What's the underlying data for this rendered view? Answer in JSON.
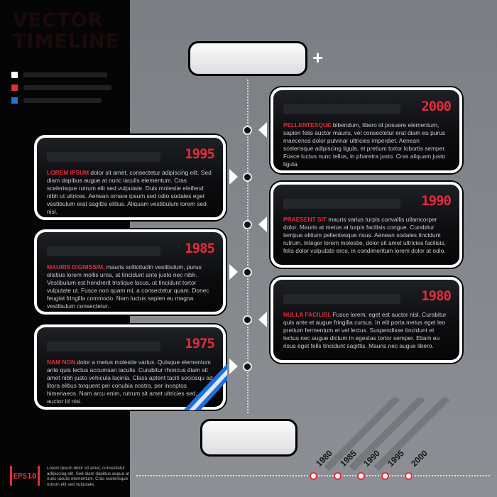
{
  "title": {
    "lines": [
      "VECTOR",
      "TIMELINE"
    ]
  },
  "legend": [
    {
      "color": "#ffffff"
    },
    {
      "color": "#e52b3c"
    },
    {
      "color": "#1f6fe0"
    }
  ],
  "header_pill": {
    "text": ""
  },
  "footer_pill": {
    "text": ""
  },
  "events": [
    {
      "year": "2000",
      "lead": "PELLENTESQUE",
      "text": "bibendum, libero id posuere elementum, sapien felis auctor mauris, vel consectetur erat diam eu purus maecenas dolor pulvinar ultricies imperdiet. Aenean scelerisque adipiscing ligula, et pretium tortor lobortis semper. Fusce luctus nunc tellus, in pharetra justo. Cras aliquam justo ligula."
    },
    {
      "year": "1995",
      "lead": "LOREM IPSUM",
      "text": "dolor sit amet, consectetur adipiscing elit. Sed diam dapibus augue at nunc iaculis elementum. Cras scelerisque rutrum elit sed vulputate. Duis molestie eleifend nibh ut ultrices. Aenean ornare ipsum sed odio sodales eget vestibulum erat sagittis elitius. Aliquam vestibulum lorem sed nisl."
    },
    {
      "year": "1990",
      "lead": "PRAESENT SIT",
      "text": "mauris varius turpis convallis ullamcorper dolor. Mauris at metus at turpis facilisis congue. Curabitur tempus elitium pellentesque risus. Aenean sodales tincidunt rutrum. Integer lorem molestie, dolor sit amet ultricies facilisis, felis dolor vulputate eros, in condimentum lorem dolor at odio."
    },
    {
      "year": "1985",
      "lead": "MAURIS DIGNISSIM,",
      "text": "mauris sollicitudin vestibulum, purus elistius lorem mollis urna, at tincidunt ante justo nec nibh. Vestibulum est hendrerit tristique lacus, ut tincidunt tortor vulputate ut. Fusce non quam mi, a consectetur quam. Donec feugiat fringilla commodo. Nam luctus sapien eu magna vestibulum consectetur."
    },
    {
      "year": "1980",
      "lead": "NULLA FACILISI.",
      "text": "Fusce lorem, eget est auctor nisl. Curabitur quis ante et augue fringilla cursus. In elit porta metus eget leo pretium fermentum et vel lectus. Suspendisse tincidunt et lectus nec augue dictum in egestas tortor semper. Etiam eu risus eget felis tincidunt sagittis. Mauris nec augue libero."
    },
    {
      "year": "1975",
      "lead": "NAM NON",
      "text": "dolor a metus molestie varius. Quisque elementum ante quis lectus accumsan iaculis. Curabitur rhoncus diam sit amet nibh justo vehicula lacinia. Class aptent taciti sociosqu ad litora elitius torquent per conubia nostra, per inceptos himenaeos. Nam arcu enim, rutrum sit amet ultricies sed, auctor id nisi."
    }
  ],
  "badge": {
    "text": "EPS10"
  },
  "footnote": "Lorem ipsum dolor sit amet, consectetur adipiscing elit. Sed diam dapibus augue at nunc iaculis elementum. Cras scelerisque rutrum elit sed vulputate.",
  "axis": {
    "labels": [
      "1980",
      "1985",
      "1990",
      "1995",
      "2000"
    ]
  }
}
